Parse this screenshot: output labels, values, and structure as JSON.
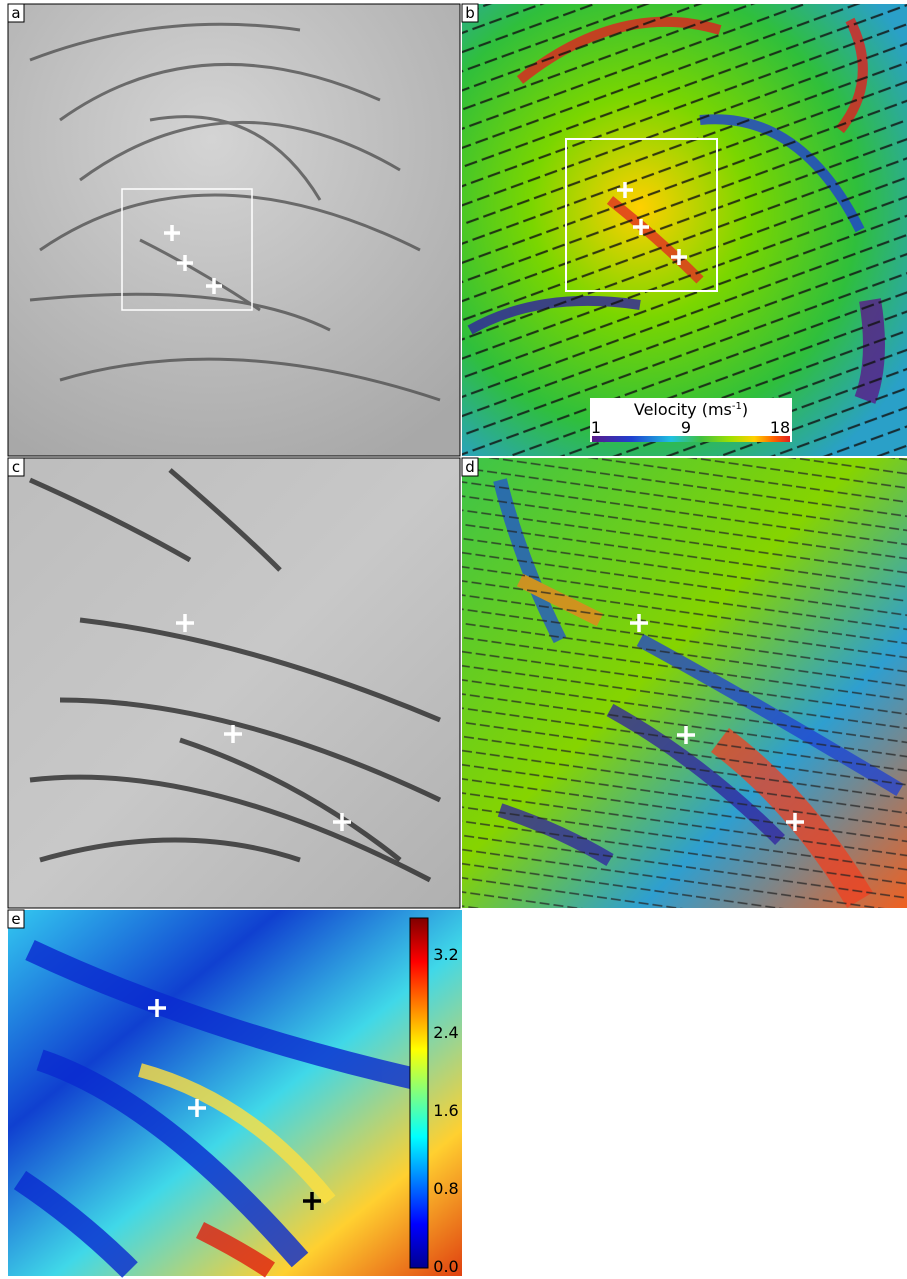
{
  "panels": [
    {
      "label": "a"
    },
    {
      "label": "b",
      "colorbar": {
        "title": "Velocity (ms",
        "title_superscript": "-1",
        "title_end": ")",
        "ticks": [
          "1",
          "9",
          "18"
        ]
      }
    },
    {
      "label": "c"
    },
    {
      "label": "d"
    },
    {
      "label": "e",
      "colorbar": {
        "ticks": [
          "3.2",
          "2.4",
          "1.6",
          "0.8",
          "0.0"
        ]
      }
    }
  ]
}
